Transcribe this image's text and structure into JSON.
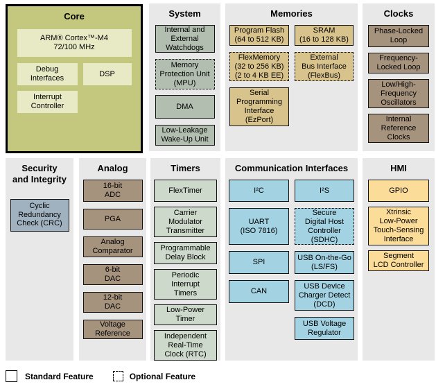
{
  "palette": {
    "page_bg": "#ffffff",
    "panel_bg": "#e8e8e8",
    "core_bg": "#c3c87e",
    "core_block_bg": "#e7eac5",
    "system_block": "#b2beb0",
    "memories_block": "#d9c38c",
    "clocks_block": "#a6937e",
    "security_block": "#a0b1bf",
    "analog_block": "#a6937e",
    "timers_block": "#cdd9ca",
    "comm_block": "#a3d2e2",
    "hmi_block": "#fbdc98",
    "border": "#000000"
  },
  "panels": {
    "core": {
      "title": "Core",
      "blocks": [
        {
          "label": "ARM® Cortex™-M4\n72/100 MHz",
          "optional": false
        },
        {
          "label": "Debug\nInterfaces",
          "optional": false
        },
        {
          "label": "DSP",
          "optional": false
        },
        {
          "label": "Interrupt\nController",
          "optional": false
        }
      ]
    },
    "system": {
      "title": "System",
      "blocks": [
        {
          "label": "Internal and\nExternal\nWatchdogs",
          "optional": false
        },
        {
          "label": "Memory\nProtection Unit\n(MPU)",
          "optional": true
        },
        {
          "label": "DMA",
          "optional": false
        },
        {
          "label": "Low-Leakage\nWake-Up Unit",
          "optional": false
        }
      ]
    },
    "memories": {
      "title": "Memories",
      "left_blocks": [
        {
          "label": "Program Flash\n(64 to 512 KB)",
          "optional": false
        },
        {
          "label": "FlexMemory\n(32 to 256 KB)\n(2 to 4 KB EE)",
          "optional": true
        },
        {
          "label": "Serial\nProgramming\nInterface\n(EzPort)",
          "optional": false
        }
      ],
      "right_blocks": [
        {
          "label": "SRAM\n(16 to 128 KB)",
          "optional": false
        },
        {
          "label": "External\nBus Interface\n(FlexBus)",
          "optional": true
        }
      ]
    },
    "clocks": {
      "title": "Clocks",
      "blocks": [
        {
          "label": "Phase-Locked\nLoop",
          "optional": false
        },
        {
          "label": "Frequency-\nLocked Loop",
          "optional": false
        },
        {
          "label": "Low/High-\nFrequency\nOscillators",
          "optional": false
        },
        {
          "label": "Internal\nReference\nClocks",
          "optional": false
        }
      ]
    },
    "security": {
      "title": "Security\nand Integrity",
      "blocks": [
        {
          "label": "Cyclic\nRedundancy\nCheck (CRC)",
          "optional": false
        }
      ]
    },
    "analog": {
      "title": "Analog",
      "blocks": [
        {
          "label": "16-bit\nADC",
          "optional": false
        },
        {
          "label": "PGA",
          "optional": false
        },
        {
          "label": "Analog\nComparator",
          "optional": false
        },
        {
          "label": "6-bit\nDAC",
          "optional": false
        },
        {
          "label": "12-bit\nDAC",
          "optional": false
        },
        {
          "label": "Voltage\nReference",
          "optional": false
        }
      ]
    },
    "timers": {
      "title": "Timers",
      "blocks": [
        {
          "label": "FlexTimer",
          "optional": false
        },
        {
          "label": "Carrier\nModulator\nTransmitter",
          "optional": false
        },
        {
          "label": "Programmable\nDelay Block",
          "optional": false
        },
        {
          "label": "Periodic\nInterrupt\nTimers",
          "optional": false
        },
        {
          "label": "Low-Power\nTimer",
          "optional": false
        },
        {
          "label": "Independent\nReal-Time\nClock (RTC)",
          "optional": false
        }
      ]
    },
    "comm": {
      "title": "Communication Interfaces",
      "left_blocks": [
        {
          "label": "I²C",
          "optional": false
        },
        {
          "label": "UART\n(ISO 7816)",
          "optional": false
        },
        {
          "label": "SPI",
          "optional": false
        },
        {
          "label": "CAN",
          "optional": false
        }
      ],
      "right_blocks": [
        {
          "label": "I²S",
          "optional": false
        },
        {
          "label": "Secure\nDigital Host\nController\n(SDHC)",
          "optional": true
        },
        {
          "label": "USB On-the-Go\n(LS/FS)",
          "optional": false
        },
        {
          "label": "USB Device\nCharger Detect\n(DCD)",
          "optional": false
        },
        {
          "label": "USB Voltage\nRegulator",
          "optional": false
        }
      ]
    },
    "hmi": {
      "title": "HMI",
      "blocks": [
        {
          "label": "GPIO",
          "optional": false
        },
        {
          "label": "Xtrinsic\nLow-Power\nTouch-Sensing\nInterface",
          "optional": false
        },
        {
          "label": "Segment\nLCD Controller",
          "optional": false
        }
      ]
    }
  },
  "legend": {
    "standard_label": "Standard Feature",
    "optional_label": "Optional Feature"
  }
}
